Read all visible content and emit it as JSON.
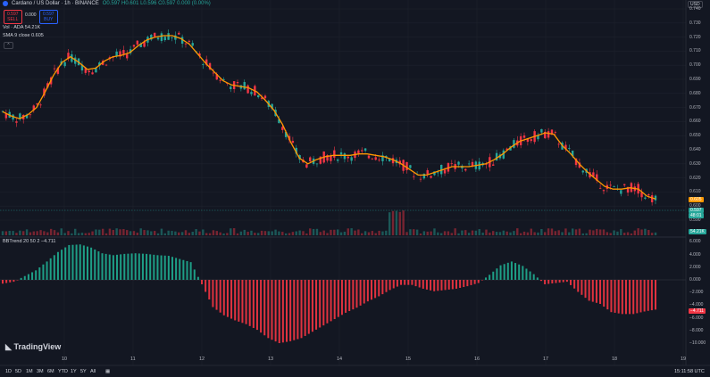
{
  "header": {
    "symbol": "Cardano / US Dollar · 1h · BINANCE",
    "ohlc": "O0.597 H0.601 L0.596 C0.597 0.000 (0.00%)"
  },
  "trade": {
    "sell_price": "0.597",
    "sell_label": "SELL",
    "spread": "0.000",
    "buy_price": "0.597",
    "buy_label": "BUY"
  },
  "indicators": {
    "volume": "Vol · ADA 54.21K",
    "sma": "SMA 9 close 0.605",
    "bbtrend": "BBTrend 20 50 2 −4.711"
  },
  "currency": "USD",
  "price_scale": [
    "0.740",
    "0.730",
    "0.720",
    "0.710",
    "0.700",
    "0.690",
    "0.680",
    "0.670",
    "0.660",
    "0.650",
    "0.640",
    "0.630",
    "0.620",
    "0.610",
    "0.600",
    "0.590"
  ],
  "price_labels": {
    "sma": "0.605",
    "close": "0.597",
    "countdown": "48:01",
    "volume": "54.21K",
    "bbtrend": "−4.711"
  },
  "osc_scale": [
    "6.000",
    "4.000",
    "2.000",
    "0.000",
    "−2.000",
    "−4.000",
    "−6.000",
    "−8.000",
    "−10.000"
  ],
  "time_labels": [
    "10",
    "11",
    "12",
    "13",
    "14",
    "15",
    "16",
    "17",
    "18",
    "19"
  ],
  "bottom_bar": {
    "ranges": [
      "1D",
      "5D",
      "1M",
      "3M",
      "6M",
      "YTD",
      "1Y",
      "5Y",
      "All"
    ],
    "clock": "15:11:58 UTC"
  },
  "branding": "TradingView",
  "colors": {
    "bg": "#131722",
    "up": "#26a69a",
    "down": "#f23645",
    "sma": "#ff9800",
    "osc_up": "#1e9e86",
    "osc_down": "#e0323f"
  },
  "chart_data": {
    "type": "candlestick",
    "x_unit": "hour index",
    "sma_close": [
      0.667,
      0.664,
      0.662,
      0.665,
      0.67,
      0.681,
      0.693,
      0.702,
      0.706,
      0.702,
      0.697,
      0.698,
      0.703,
      0.706,
      0.707,
      0.709,
      0.714,
      0.718,
      0.72,
      0.721,
      0.721,
      0.719,
      0.715,
      0.708,
      0.701,
      0.695,
      0.689,
      0.686,
      0.685,
      0.684,
      0.681,
      0.675,
      0.668,
      0.658,
      0.645,
      0.634,
      0.63,
      0.633,
      0.635,
      0.636,
      0.636,
      0.636,
      0.637,
      0.637,
      0.636,
      0.635,
      0.633,
      0.63,
      0.626,
      0.622,
      0.622,
      0.624,
      0.626,
      0.628,
      0.628,
      0.628,
      0.629,
      0.63,
      0.633,
      0.637,
      0.642,
      0.646,
      0.648,
      0.65,
      0.652,
      0.651,
      0.643,
      0.637,
      0.63,
      0.624,
      0.619,
      0.614,
      0.612,
      0.612,
      0.613,
      0.612,
      0.607,
      0.605
    ],
    "bbtrend": [
      -0.6,
      -0.3,
      0.6,
      1.5,
      2.9,
      4.4,
      5.5,
      5.6,
      5.1,
      4.2,
      3.9,
      4.1,
      4.2,
      4.1,
      3.9,
      3.8,
      3.3,
      2.8,
      -0.7,
      -4.3,
      -5.6,
      -6.4,
      -7.0,
      -7.9,
      -9.2,
      -10.0,
      -9.7,
      -9.2,
      -8.2,
      -7.2,
      -6.2,
      -5.2,
      -4.4,
      -3.4,
      -2.6,
      -1.6,
      -0.8,
      -0.8,
      -1.4,
      -1.8,
      -1.6,
      -1.4,
      -1.0,
      -0.5,
      0.8,
      2.3,
      2.9,
      2.2,
      0.9,
      -0.7,
      -0.5,
      -0.3,
      -1.9,
      -3.3,
      -3.8,
      -5.1,
      -5.4,
      -5.4,
      -5.0,
      -4.7
    ],
    "ylim": [
      0.59,
      0.742
    ],
    "osc_ylim": [
      -10.5,
      7
    ],
    "sma_period": 9
  }
}
